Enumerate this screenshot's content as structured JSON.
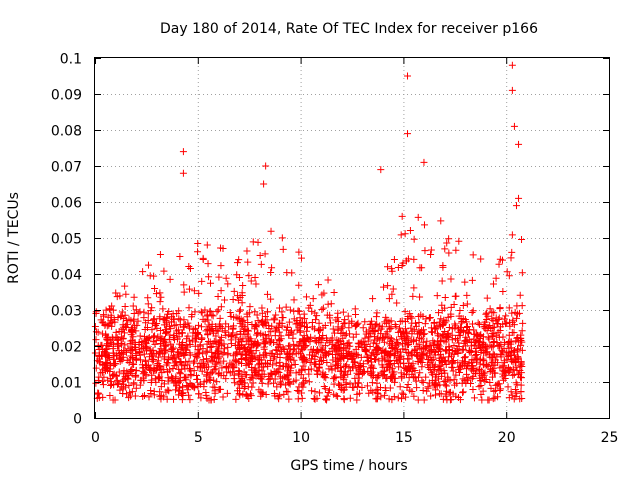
{
  "chart_data": {
    "type": "scatter",
    "title": "Day 180 of 2014, Rate Of TEC Index for receiver p166",
    "xlabel": "GPS time / hours",
    "ylabel": "ROTI / TECUs",
    "xlim": [
      0,
      25
    ],
    "ylim": [
      0,
      0.1
    ],
    "xticks": [
      "0",
      "5",
      "10",
      "15",
      "20",
      "25"
    ],
    "yticks": [
      "0",
      "0.01",
      "0.02",
      "0.03",
      "0.04",
      "0.05",
      "0.06",
      "0.07",
      "0.08",
      "0.09",
      "0.1"
    ],
    "grid": true,
    "marker": "plus",
    "color": "#ff0000",
    "x_data_range": [
      0,
      20.8
    ],
    "notable_points": [
      {
        "x": 4.3,
        "y": 0.074
      },
      {
        "x": 4.3,
        "y": 0.068
      },
      {
        "x": 8.3,
        "y": 0.07
      },
      {
        "x": 8.2,
        "y": 0.065
      },
      {
        "x": 13.9,
        "y": 0.069
      },
      {
        "x": 15.2,
        "y": 0.095
      },
      {
        "x": 15.2,
        "y": 0.079
      },
      {
        "x": 16.0,
        "y": 0.071
      },
      {
        "x": 20.3,
        "y": 0.098
      },
      {
        "x": 20.3,
        "y": 0.091
      },
      {
        "x": 20.4,
        "y": 0.081
      },
      {
        "x": 20.6,
        "y": 0.076
      },
      {
        "x": 20.5,
        "y": 0.059
      },
      {
        "x": 20.6,
        "y": 0.061
      }
    ],
    "envelope": [
      {
        "x": 0.0,
        "typical_max": 0.03
      },
      {
        "x": 1.0,
        "typical_max": 0.035
      },
      {
        "x": 2.0,
        "typical_max": 0.04
      },
      {
        "x": 3.0,
        "typical_max": 0.045
      },
      {
        "x": 4.0,
        "typical_max": 0.048
      },
      {
        "x": 5.0,
        "typical_max": 0.05
      },
      {
        "x": 6.0,
        "typical_max": 0.05
      },
      {
        "x": 7.0,
        "typical_max": 0.045
      },
      {
        "x": 8.0,
        "typical_max": 0.055
      },
      {
        "x": 9.0,
        "typical_max": 0.05
      },
      {
        "x": 10.0,
        "typical_max": 0.052
      },
      {
        "x": 11.0,
        "typical_max": 0.048
      },
      {
        "x": 12.0,
        "typical_max": 0.032
      },
      {
        "x": 13.0,
        "typical_max": 0.032
      },
      {
        "x": 14.0,
        "typical_max": 0.038
      },
      {
        "x": 15.0,
        "typical_max": 0.058
      },
      {
        "x": 16.0,
        "typical_max": 0.06
      },
      {
        "x": 17.0,
        "typical_max": 0.055
      },
      {
        "x": 18.0,
        "typical_max": 0.048
      },
      {
        "x": 19.0,
        "typical_max": 0.045
      },
      {
        "x": 20.0,
        "typical_max": 0.05
      },
      {
        "x": 20.8,
        "typical_max": 0.055
      }
    ],
    "typical_min": 0.005
  }
}
